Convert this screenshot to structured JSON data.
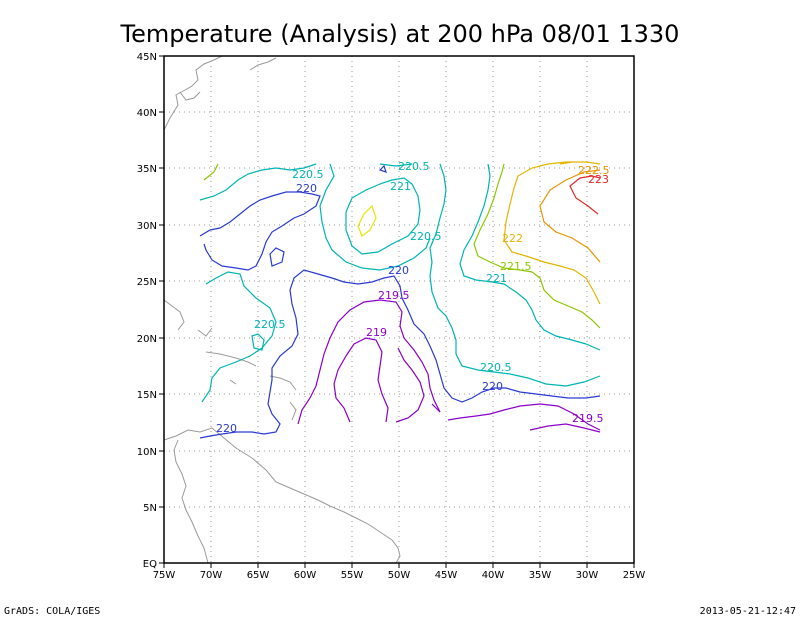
{
  "title": "Temperature (Analysis) at 200 hPa 08/01 1330",
  "footer": {
    "left": "GrADS: COLA/IGES",
    "right": "2013-05-21-12:47"
  },
  "x_ticks": [
    "75W",
    "70W",
    "65W",
    "60W",
    "55W",
    "50W",
    "45W",
    "40W",
    "35W",
    "30W",
    "25W"
  ],
  "y_ticks": [
    "EQ",
    "5N",
    "10N",
    "15N",
    "20N",
    "25N",
    "30N",
    "35N",
    "40N",
    "45N"
  ],
  "contour_labels": [
    {
      "text": "220.5",
      "color": "#00b4b4"
    },
    {
      "text": "220",
      "color": "#2a3ad0"
    },
    {
      "text": "220.5",
      "color": "#00b4b4"
    },
    {
      "text": "221",
      "color": "#00b4b4"
    },
    {
      "text": "220.5",
      "color": "#00b4b4"
    },
    {
      "text": "220",
      "color": "#2a3ad0"
    },
    {
      "text": "219.5",
      "color": "#8c00c8"
    },
    {
      "text": "219",
      "color": "#8c00c8"
    },
    {
      "text": "220.5",
      "color": "#00b4b4"
    },
    {
      "text": "220",
      "color": "#2a3ad0"
    },
    {
      "text": "222",
      "color": "#e6b400"
    },
    {
      "text": "221.5",
      "color": "#8cc800"
    },
    {
      "text": "221",
      "color": "#00b4b4"
    },
    {
      "text": "220.5",
      "color": "#00b4b4"
    },
    {
      "text": "220",
      "color": "#2a3ad0"
    },
    {
      "text": "219.5",
      "color": "#8c00c8"
    },
    {
      "text": "222.5",
      "color": "#e69600"
    },
    {
      "text": "223",
      "color": "#e62828"
    }
  ]
}
